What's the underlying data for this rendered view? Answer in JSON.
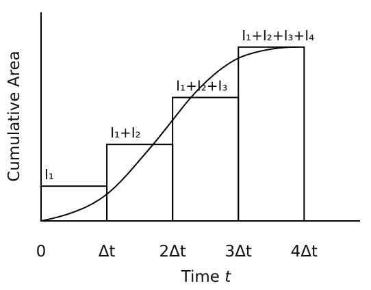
{
  "chart_data": {
    "type": "bar",
    "title": "",
    "xlabel": "Time t",
    "ylabel": "Cumulative Area",
    "categories": [
      "I₁",
      "I₁+I₂",
      "I₁+I₂+I₃",
      "I₁+I₂+I₃+I₄"
    ],
    "bar_labels": [
      "I₁",
      "I₁+I₂",
      "I₁+I₂+I₃",
      "I₁+I₂+I₃+I₄"
    ],
    "x_ticks": [
      "0",
      "Δt",
      "2Δt",
      "3Δt",
      "4Δt"
    ],
    "x_tick_values": [
      0,
      1,
      2,
      3,
      4
    ],
    "values": [
      0.2,
      0.44,
      0.71,
      1.0
    ],
    "bar_intervals": [
      [
        0,
        1
      ],
      [
        1,
        2
      ],
      [
        2,
        3
      ],
      [
        3,
        4
      ]
    ],
    "curve": {
      "x": [
        0,
        0.25,
        0.5,
        0.75,
        1.0,
        1.25,
        1.5,
        1.75,
        2.0,
        2.25,
        2.5,
        2.75,
        3.0,
        3.25,
        3.5,
        3.75,
        3.9
      ],
      "y": [
        0.0,
        0.02,
        0.05,
        0.09,
        0.15,
        0.24,
        0.35,
        0.46,
        0.58,
        0.7,
        0.8,
        0.88,
        0.94,
        0.97,
        0.99,
        1.0,
        1.0
      ]
    },
    "xlim": [
      0,
      4.85
    ],
    "ylim": [
      0,
      1.2
    ],
    "grid": false,
    "legend": "none"
  }
}
